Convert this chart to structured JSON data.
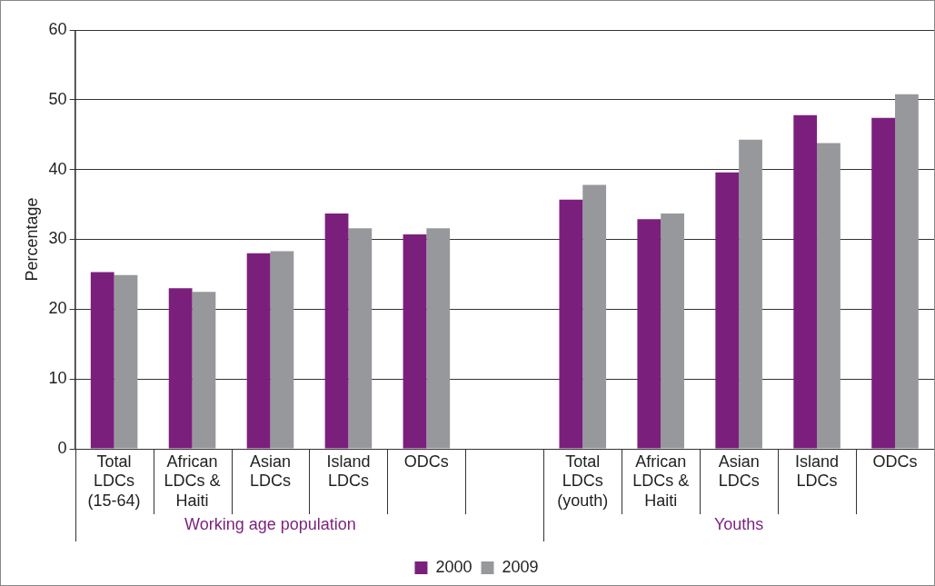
{
  "chart_data": {
    "type": "bar",
    "categories": [
      "Total LDCs (15-64)",
      "African LDCs & Haiti",
      "Asian LDCs",
      "Island LDCs",
      "ODCs",
      null,
      "Total LDCs (youth)",
      "African LDCs & Haiti",
      "Asian LDCs",
      "Island LDCs",
      "ODCs"
    ],
    "series": [
      {
        "name": "2000",
        "color": "#7b1f7d",
        "values": [
          25.3,
          23.0,
          28.0,
          33.7,
          30.7,
          null,
          35.7,
          32.9,
          39.6,
          47.8,
          47.4
        ]
      },
      {
        "name": "2009",
        "color": "#97989c",
        "values": [
          24.9,
          22.5,
          28.3,
          31.6,
          31.6,
          null,
          37.8,
          33.7,
          44.3,
          43.8,
          50.8
        ]
      }
    ],
    "ylabel": "Percentage",
    "ylim": [
      0,
      60
    ],
    "yticks": [
      0,
      10,
      20,
      30,
      40,
      50,
      60
    ],
    "grid": "y",
    "legend": "bottom",
    "annotations": [
      "Working age population",
      "Youths"
    ]
  }
}
